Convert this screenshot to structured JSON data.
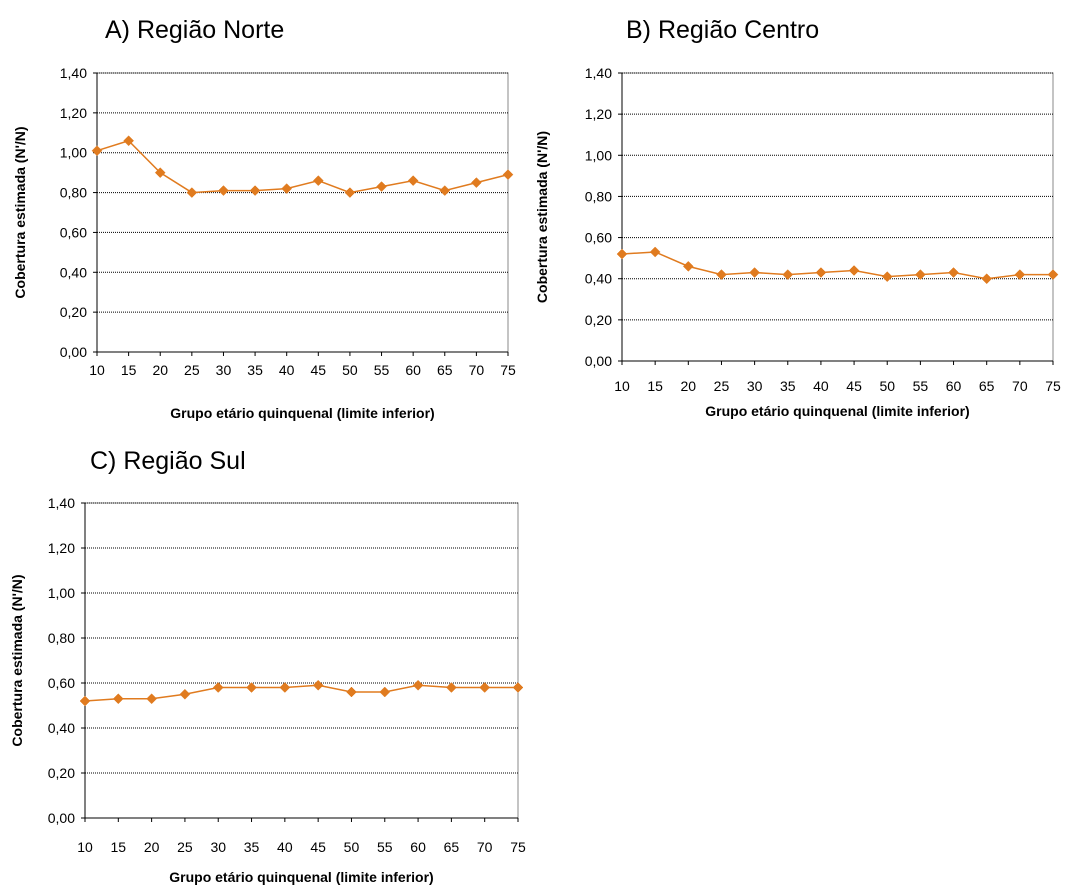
{
  "colors": {
    "series": "#e07b1f",
    "grid": "#000000",
    "frame": "#888888"
  },
  "chart_data": [
    {
      "type": "line",
      "title": "A) Região Norte",
      "xlabel": "Grupo etário quinquenal (limite inferior)",
      "ylabel": "Cobertura estimada  (N'/N)",
      "ylim": [
        0,
        1.4
      ],
      "y_ticks": [
        "0,00",
        "0,20",
        "0,40",
        "0,60",
        "0,80",
        "1,00",
        "1,20",
        "1,40"
      ],
      "x": [
        "10",
        "15",
        "20",
        "25",
        "30",
        "35",
        "40",
        "45",
        "50",
        "55",
        "60",
        "65",
        "70",
        "75"
      ],
      "values": [
        1.01,
        1.06,
        0.9,
        0.8,
        0.81,
        0.81,
        0.82,
        0.86,
        0.8,
        0.83,
        0.86,
        0.81,
        0.85,
        0.89
      ],
      "grid": true,
      "legend": "none"
    },
    {
      "type": "line",
      "title": "B) Região Centro",
      "xlabel": "Grupo etário quinquenal (limite inferior)",
      "ylabel": "Cobertura estimada  (N'/N)",
      "ylim": [
        0,
        1.4
      ],
      "y_ticks": [
        "0,00",
        "0,20",
        "0,40",
        "0,60",
        "0,80",
        "1,00",
        "1,20",
        "1,40"
      ],
      "x": [
        "10",
        "15",
        "20",
        "25",
        "30",
        "35",
        "40",
        "45",
        "50",
        "55",
        "60",
        "65",
        "70",
        "75"
      ],
      "values": [
        0.52,
        0.53,
        0.46,
        0.42,
        0.43,
        0.42,
        0.43,
        0.44,
        0.41,
        0.42,
        0.43,
        0.4,
        0.42,
        0.42
      ],
      "grid": true,
      "legend": "none"
    },
    {
      "type": "line",
      "title": "C) Região Sul",
      "xlabel": "Grupo etário quinquenal (limite inferior)",
      "ylabel": "Cobertura estimada  (N'/N)",
      "ylim": [
        0,
        1.4
      ],
      "y_ticks": [
        "0,00",
        "0,20",
        "0,40",
        "0,60",
        "0,80",
        "1,00",
        "1,20",
        "1,40"
      ],
      "x": [
        "10",
        "15",
        "20",
        "25",
        "30",
        "35",
        "40",
        "45",
        "50",
        "55",
        "60",
        "65",
        "70",
        "75"
      ],
      "values": [
        0.52,
        0.53,
        0.53,
        0.55,
        0.58,
        0.58,
        0.58,
        0.59,
        0.56,
        0.56,
        0.59,
        0.58,
        0.58,
        0.58
      ],
      "grid": true,
      "legend": "none"
    }
  ]
}
